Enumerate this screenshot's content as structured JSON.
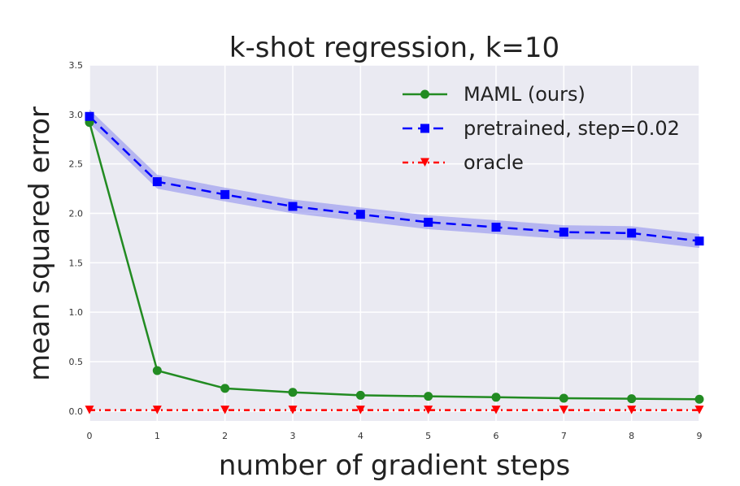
{
  "chart_data": {
    "type": "line",
    "title": "k-shot regression, k=10",
    "xlabel": "number of gradient steps",
    "ylabel": "mean squared error",
    "x": [
      0,
      1,
      2,
      3,
      4,
      5,
      6,
      7,
      8,
      9
    ],
    "xlim": [
      0,
      9
    ],
    "ylim": [
      -0.1,
      3.5
    ],
    "xticks": [
      "0",
      "1",
      "2",
      "3",
      "4",
      "5",
      "6",
      "7",
      "8",
      "9"
    ],
    "yticks": [
      "0.0",
      "0.5",
      "1.0",
      "1.5",
      "2.0",
      "2.5",
      "3.0",
      "3.5"
    ],
    "grid": true,
    "legend_position": "top-right",
    "series": [
      {
        "name": "MAML (ours)",
        "color": "#228b22",
        "marker": "circle",
        "linestyle": "solid",
        "values": [
          2.92,
          0.41,
          0.23,
          0.19,
          0.16,
          0.15,
          0.14,
          0.13,
          0.125,
          0.12
        ]
      },
      {
        "name": "pretrained, step=0.02",
        "color": "#0000ff",
        "marker": "square",
        "linestyle": "dashed",
        "values": [
          2.98,
          2.32,
          2.19,
          2.07,
          1.99,
          1.91,
          1.86,
          1.81,
          1.8,
          1.72
        ],
        "band": 0.07,
        "band_color": "#8888ee"
      },
      {
        "name": "oracle",
        "color": "#ff0000",
        "marker": "triangle-down",
        "linestyle": "dashdot",
        "values": [
          0.01,
          0.01,
          0.01,
          0.01,
          0.01,
          0.01,
          0.01,
          0.01,
          0.01,
          0.01
        ]
      }
    ]
  },
  "colors": {
    "plot_background": "#eaeaf2",
    "grid": "#ffffff"
  }
}
